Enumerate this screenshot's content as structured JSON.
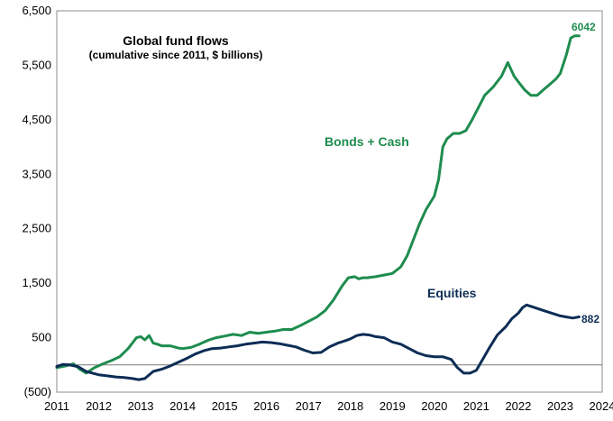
{
  "chart_data": {
    "type": "line",
    "title": "Global fund flows",
    "subtitle": "(cumulative since 2011, $ billions)",
    "xlabel": "",
    "ylabel": "",
    "xlim": [
      2011,
      2024
    ],
    "ylim": [
      -500,
      6500
    ],
    "yticks": [
      -500,
      500,
      1500,
      2500,
      3500,
      4500,
      5500,
      6500
    ],
    "ytick_labels": [
      "(500)",
      "500",
      "1,500",
      "2,500",
      "3,500",
      "4,500",
      "5,500",
      "6,500"
    ],
    "xticks": [
      2011,
      2012,
      2013,
      2014,
      2015,
      2016,
      2017,
      2018,
      2019,
      2020,
      2021,
      2022,
      2023,
      2024
    ],
    "xtick_labels": [
      "2011",
      "2012",
      "2013",
      "2014",
      "2015",
      "2016",
      "2017",
      "2018",
      "2019",
      "2020",
      "2021",
      "2022",
      "2023",
      "2024"
    ],
    "zero_line": 0,
    "grid": false,
    "series": [
      {
        "name": "Bonds + Cash",
        "color": "#1e8c4e",
        "end_label": "6042",
        "x": [
          2011.0,
          2011.2,
          2011.4,
          2011.55,
          2011.7,
          2011.9,
          2012.1,
          2012.3,
          2012.5,
          2012.7,
          2012.9,
          2013.0,
          2013.1,
          2013.2,
          2013.3,
          2013.4,
          2013.5,
          2013.7,
          2013.9,
          2014.0,
          2014.2,
          2014.4,
          2014.6,
          2014.8,
          2015.0,
          2015.2,
          2015.4,
          2015.6,
          2015.8,
          2016.0,
          2016.2,
          2016.4,
          2016.6,
          2016.8,
          2017.0,
          2017.2,
          2017.4,
          2017.6,
          2017.8,
          2017.95,
          2018.1,
          2018.2,
          2018.3,
          2018.4,
          2018.6,
          2018.8,
          2019.0,
          2019.2,
          2019.35,
          2019.5,
          2019.65,
          2019.8,
          2020.0,
          2020.1,
          2020.2,
          2020.3,
          2020.45,
          2020.6,
          2020.75,
          2020.9,
          2021.0,
          2021.2,
          2021.4,
          2021.6,
          2021.75,
          2021.9,
          2022.0,
          2022.15,
          2022.3,
          2022.45,
          2022.6,
          2022.75,
          2022.9,
          2023.0,
          2023.15,
          2023.25,
          2023.35,
          2023.45
        ],
        "values": [
          -50,
          -20,
          20,
          -80,
          -150,
          -50,
          20,
          80,
          150,
          300,
          500,
          520,
          460,
          540,
          400,
          380,
          350,
          350,
          310,
          300,
          320,
          380,
          450,
          500,
          530,
          560,
          540,
          600,
          580,
          600,
          620,
          650,
          650,
          720,
          800,
          880,
          1000,
          1200,
          1450,
          1600,
          1620,
          1580,
          1600,
          1600,
          1620,
          1650,
          1680,
          1800,
          2000,
          2300,
          2600,
          2850,
          3100,
          3400,
          4000,
          4150,
          4250,
          4250,
          4300,
          4500,
          4650,
          4950,
          5100,
          5300,
          5550,
          5300,
          5200,
          5050,
          4950,
          4950,
          5050,
          5150,
          5250,
          5350,
          5700,
          6000,
          6042,
          6042
        ]
      },
      {
        "name": "Equities",
        "color": "#0d2d55",
        "end_label": "882",
        "x": [
          2011.0,
          2011.15,
          2011.3,
          2011.5,
          2011.7,
          2011.85,
          2012.0,
          2012.2,
          2012.4,
          2012.6,
          2012.8,
          2012.95,
          2013.1,
          2013.3,
          2013.5,
          2013.7,
          2013.9,
          2014.1,
          2014.3,
          2014.5,
          2014.7,
          2014.9,
          2015.1,
          2015.3,
          2015.5,
          2015.7,
          2015.9,
          2016.1,
          2016.3,
          2016.5,
          2016.7,
          2016.9,
          2017.1,
          2017.3,
          2017.5,
          2017.7,
          2017.9,
          2018.0,
          2018.15,
          2018.3,
          2018.45,
          2018.6,
          2018.8,
          2019.0,
          2019.2,
          2019.4,
          2019.6,
          2019.8,
          2020.0,
          2020.2,
          2020.4,
          2020.55,
          2020.7,
          2020.85,
          2021.0,
          2021.15,
          2021.3,
          2021.5,
          2021.7,
          2021.85,
          2022.0,
          2022.1,
          2022.2,
          2022.4,
          2022.6,
          2022.8,
          2023.0,
          2023.15,
          2023.3,
          2023.45
        ],
        "values": [
          -30,
          10,
          0,
          -30,
          -120,
          -150,
          -180,
          -200,
          -220,
          -230,
          -250,
          -270,
          -250,
          -120,
          -80,
          -20,
          50,
          120,
          200,
          260,
          300,
          310,
          330,
          350,
          380,
          400,
          420,
          410,
          390,
          360,
          330,
          270,
          220,
          230,
          330,
          400,
          450,
          480,
          540,
          560,
          550,
          520,
          500,
          420,
          380,
          300,
          220,
          170,
          150,
          150,
          100,
          -50,
          -150,
          -150,
          -100,
          100,
          300,
          550,
          700,
          850,
          950,
          1050,
          1100,
          1050,
          1000,
          950,
          900,
          880,
          860,
          882
        ]
      }
    ],
    "annotations": [
      {
        "text": "Bonds + Cash",
        "series": 0
      },
      {
        "text": "Equities",
        "series": 1
      }
    ]
  }
}
